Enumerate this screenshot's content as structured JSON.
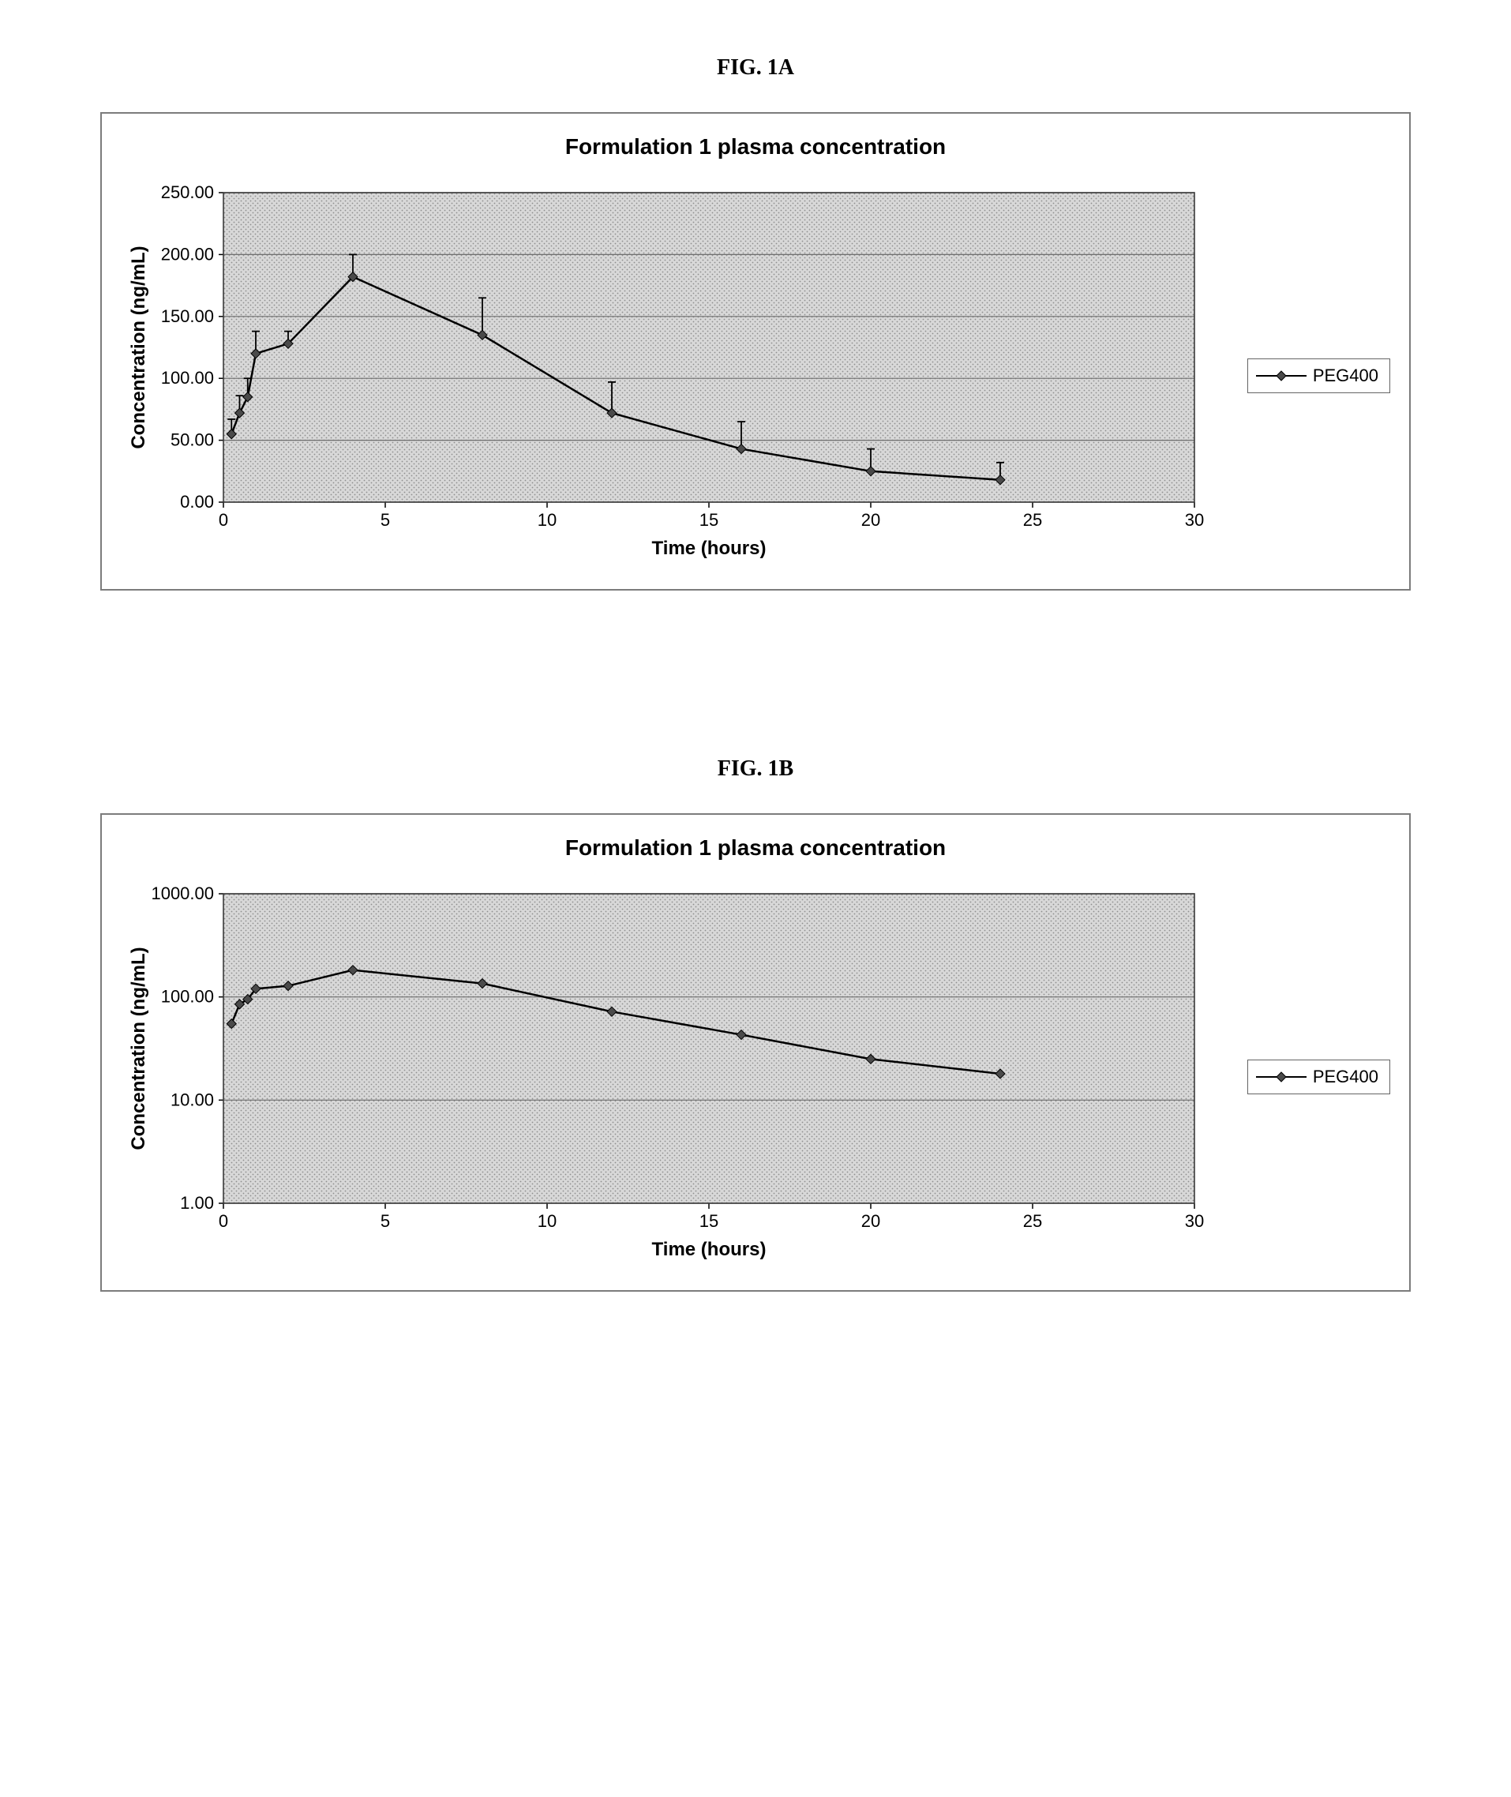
{
  "figures": {
    "a": {
      "label": "FIG. 1A"
    },
    "b": {
      "label": "FIG. 1B"
    }
  },
  "chart_a": {
    "type": "line",
    "title": "Formulation 1 plasma concentration",
    "xlabel": "Time (hours)",
    "ylabel": "Concentration (ng/mL)",
    "legend_label": "PEG400",
    "xlim": [
      0,
      30
    ],
    "ylim": [
      0,
      250
    ],
    "xticks": [
      0,
      5,
      10,
      15,
      20,
      25,
      30
    ],
    "yticks": [
      0,
      50,
      100,
      150,
      200,
      250
    ],
    "ytick_labels": [
      "0.00",
      "50.00",
      "100.00",
      "150.00",
      "200.00",
      "250.00"
    ],
    "yscale": "linear",
    "grid_color": "#6d6d6d",
    "plot_bg": "#d8d8d8",
    "dot_pattern": true,
    "line_color": "#000000",
    "marker_style": "diamond",
    "marker_size": 12,
    "marker_fill": "#4a4a4a",
    "line_width": 2.5,
    "error_bar_color": "#000000",
    "error_bar_cap": 10,
    "error_bar_width": 1.8,
    "label_fontsize": 24,
    "tick_fontsize": 22,
    "title_fontsize": 28,
    "series": {
      "x": [
        0.25,
        0.5,
        0.75,
        1.0,
        2.0,
        4.0,
        8.0,
        12.0,
        16.0,
        20.0,
        24.0
      ],
      "y": [
        55,
        72,
        85,
        120,
        128,
        182,
        135,
        72,
        43,
        25,
        18
      ],
      "err_up": [
        12,
        14,
        15,
        18,
        10,
        18,
        30,
        25,
        22,
        18,
        14
      ],
      "err_dn": [
        0,
        0,
        0,
        0,
        0,
        0,
        0,
        0,
        0,
        0,
        0
      ]
    }
  },
  "chart_b": {
    "type": "line",
    "title": "Formulation 1 plasma concentration",
    "xlabel": "Time (hours)",
    "ylabel": "Concentration (ng/mL)",
    "legend_label": "PEG400",
    "xlim": [
      0,
      30
    ],
    "ylim": [
      1,
      1000
    ],
    "xticks": [
      0,
      5,
      10,
      15,
      20,
      25,
      30
    ],
    "ytick_labels": [
      "1.00",
      "10.00",
      "100.00",
      "1000.00"
    ],
    "ytick_values": [
      1,
      10,
      100,
      1000
    ],
    "yscale": "log",
    "grid_color": "#6d6d6d",
    "plot_bg": "#d8d8d8",
    "dot_pattern": true,
    "line_color": "#000000",
    "marker_style": "diamond",
    "marker_size": 12,
    "marker_fill": "#4a4a4a",
    "line_width": 2.5,
    "label_fontsize": 24,
    "tick_fontsize": 22,
    "title_fontsize": 28,
    "series": {
      "x": [
        0.25,
        0.5,
        0.75,
        1.0,
        2.0,
        4.0,
        8.0,
        12.0,
        16.0,
        20.0,
        24.0
      ],
      "y": [
        55,
        85,
        95,
        120,
        128,
        182,
        135,
        72,
        43,
        25,
        18
      ]
    }
  }
}
